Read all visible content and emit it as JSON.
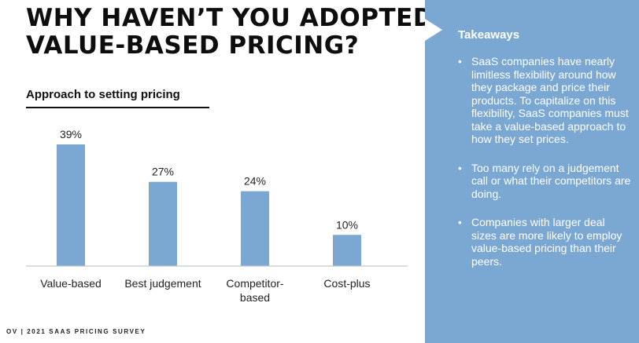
{
  "title_lines": [
    "WHY HAVEN’T YOU ADOPTED",
    "VALUE-BASED PRICING?"
  ],
  "subtitle": "Approach to setting pricing",
  "footer": "OV | 2021 SAAS PRICING SURVEY",
  "chart_data": {
    "type": "bar",
    "categories": [
      "Value-based",
      "Best judgement",
      "Competitor-based",
      "Cost-plus"
    ],
    "category_lines": [
      [
        "Value-based"
      ],
      [
        "Best judgement"
      ],
      [
        "Competitor-",
        "based"
      ],
      [
        "Cost-plus"
      ]
    ],
    "values": [
      39,
      27,
      24,
      10
    ],
    "value_labels": [
      "39%",
      "27%",
      "24%",
      "10%"
    ],
    "ylim": [
      0,
      39
    ],
    "bar_color": "#7ba7d3",
    "grid": false
  },
  "takeaways": {
    "title": "Takeaways",
    "bullet_char": "•",
    "items": [
      "SaaS companies have nearly limitless flexibility around how they package and price their products. To capitalize on this flexibility, SaaS companies must take a value-based approach to how they set prices.",
      "Too many rely on a judgement call or what their competitors are doing.",
      "Companies with larger deal sizes are more likely to employ value-based pricing than their peers."
    ]
  },
  "colors": {
    "panel": "#7ba7d3",
    "text": "#0d0d0d",
    "axis": "#c8c8c8"
  }
}
